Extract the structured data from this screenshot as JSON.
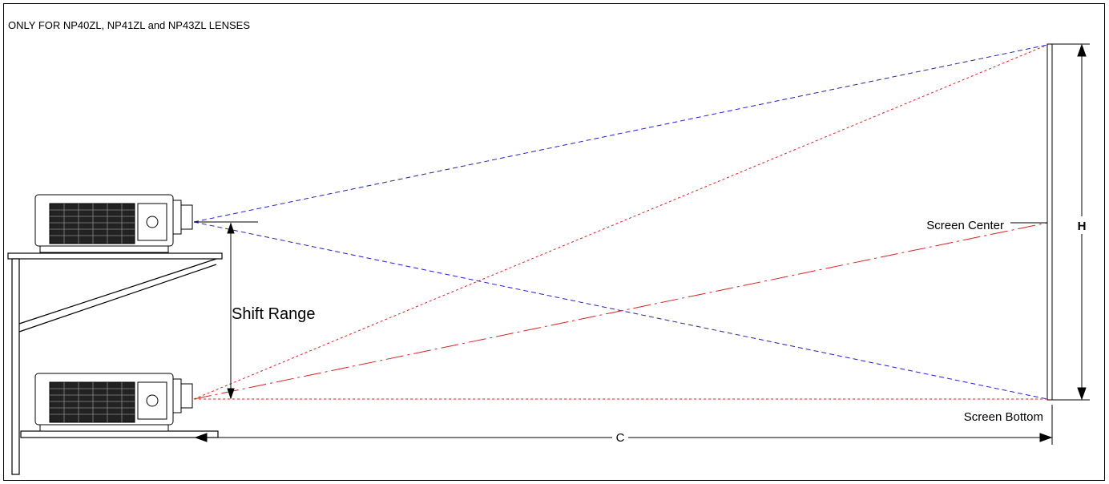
{
  "header": {
    "note": "ONLY FOR NP40ZL, NP41ZL and NP43ZL LENSES"
  },
  "labels": {
    "shift_range": "Shift Range",
    "screen_center": "Screen Center",
    "screen_bottom": "Screen Bottom",
    "height": "H",
    "distance": "C"
  },
  "colors": {
    "top_projection_rays": "#2020d0",
    "bottom_projection_rays": "#e02020",
    "outline": "#000000"
  },
  "icons": [
    "projector-top",
    "projector-bottom",
    "projection-screen",
    "mounting-shelf"
  ]
}
